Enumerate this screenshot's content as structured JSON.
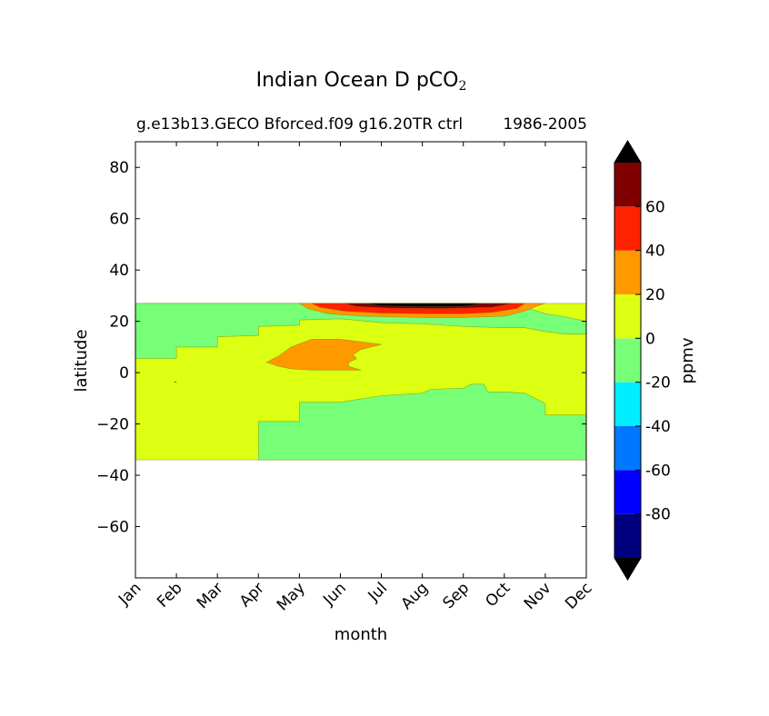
{
  "chart_data": {
    "type": "contourf",
    "title_main": "Indian Ocean D pCO",
    "title_sub": "2",
    "subtitle_left": "g.e13b13.GECO Bforced.f09 g16.20TR ctrl",
    "subtitle_right": "1986-2005",
    "xlabel": "month",
    "ylabel": "latitude",
    "x_categories": [
      "Jan",
      "Feb",
      "Mar",
      "Apr",
      "May",
      "Jun",
      "Jul",
      "Aug",
      "Sep",
      "Oct",
      "Nov",
      "Dec"
    ],
    "ylim": [
      -80,
      90
    ],
    "yticks": [
      80,
      60,
      40,
      20,
      0,
      -20,
      -40,
      -60
    ],
    "ytick_labels": [
      "80",
      "60",
      "40",
      "20",
      "0",
      "−20",
      "−40",
      "−60"
    ],
    "data_lat_range": [
      -34,
      27
    ],
    "colorbar": {
      "label": "ppmv",
      "levels": [
        -100,
        -80,
        -60,
        -40,
        -20,
        0,
        20,
        40,
        60,
        80
      ],
      "tick_labels": [
        "-80",
        "-60",
        "-40",
        "-20",
        "0",
        "20",
        "40",
        "60"
      ],
      "tick_values": [
        -80,
        -60,
        -40,
        -20,
        0,
        20,
        40,
        60
      ],
      "colors": [
        "#00007f",
        "#0000ff",
        "#0077ff",
        "#00eeff",
        "#77ff77",
        "#ddff11",
        "#ff9900",
        "#ff2200",
        "#7f0000"
      ],
      "extend_low_color": "#000000",
      "extend_high_color": "#000000"
    },
    "regions": [
      {
        "name": "baseline-region-0-to-20",
        "band": "0..20",
        "color": "#ddff11",
        "points": [
          [
            0,
            -34
          ],
          [
            11,
            -34
          ],
          [
            11,
            27
          ],
          [
            0,
            27
          ]
        ]
      },
      {
        "name": "negative-region-north",
        "band": "-20..0",
        "color": "#77ff77",
        "points": [
          [
            0,
            27
          ],
          [
            0,
            5.5
          ],
          [
            1,
            5.5
          ],
          [
            1,
            10
          ],
          [
            2,
            10
          ],
          [
            2,
            14
          ],
          [
            3,
            14.5
          ],
          [
            3,
            18
          ],
          [
            4,
            18.5
          ],
          [
            4,
            20.5
          ],
          [
            5,
            21
          ],
          [
            6,
            19.5
          ],
          [
            7,
            19
          ],
          [
            8,
            18
          ],
          [
            9,
            17.5
          ],
          [
            9.5,
            17.5
          ],
          [
            10,
            16
          ],
          [
            10.5,
            15
          ],
          [
            11,
            15
          ],
          [
            11,
            20
          ],
          [
            10.4,
            22
          ],
          [
            10,
            23
          ],
          [
            9.6,
            25
          ],
          [
            9,
            27
          ]
        ]
      },
      {
        "name": "negative-region-south",
        "band": "-20..0",
        "color": "#77ff77",
        "points": [
          [
            3,
            -34
          ],
          [
            3,
            -19
          ],
          [
            4,
            -19
          ],
          [
            4,
            -11.5
          ],
          [
            5,
            -11.5
          ],
          [
            6,
            -9
          ],
          [
            7,
            -8
          ],
          [
            7.2,
            -6.5
          ],
          [
            8,
            -6
          ],
          [
            8.2,
            -4.5
          ],
          [
            8.5,
            -4.5
          ],
          [
            8.6,
            -7.5
          ],
          [
            9,
            -7.5
          ],
          [
            9.5,
            -8
          ],
          [
            10,
            -12
          ],
          [
            10,
            -16.5
          ],
          [
            11,
            -16.5
          ],
          [
            11,
            -34
          ]
        ]
      },
      {
        "name": "positive-region-arabian-sea",
        "band": "20..40",
        "color": "#ff9900",
        "points": [
          [
            3.2,
            4
          ],
          [
            3.5,
            2.5
          ],
          [
            3.8,
            1.5
          ],
          [
            4.3,
            1
          ],
          [
            5.5,
            1
          ],
          [
            5.2,
            2.5
          ],
          [
            5.2,
            4
          ],
          [
            5.4,
            5.5
          ],
          [
            5.3,
            7
          ],
          [
            5.5,
            9
          ],
          [
            6,
            11
          ],
          [
            5.5,
            12
          ],
          [
            5,
            13
          ],
          [
            4.3,
            13
          ],
          [
            3.8,
            10
          ],
          [
            3.5,
            6.5
          ]
        ]
      },
      {
        "name": "positive-region-north-coast",
        "band": "20..40",
        "color": "#ff9900",
        "points": [
          [
            4,
            27
          ],
          [
            4.2,
            25
          ],
          [
            4.7,
            23
          ],
          [
            5.5,
            22
          ],
          [
            7,
            21.5
          ],
          [
            8,
            21.5
          ],
          [
            9,
            22
          ],
          [
            9.5,
            24
          ],
          [
            9.8,
            26
          ],
          [
            10,
            27
          ]
        ]
      },
      {
        "name": "high-region-north-coast",
        "band": "40..60",
        "color": "#ff2200",
        "points": [
          [
            4.3,
            27
          ],
          [
            4.5,
            25.5
          ],
          [
            5.1,
            24
          ],
          [
            6,
            23.2
          ],
          [
            7,
            23
          ],
          [
            8,
            23
          ],
          [
            8.7,
            23.5
          ],
          [
            9.3,
            25
          ],
          [
            9.5,
            27
          ]
        ]
      },
      {
        "name": "very-high-region-north-coast",
        "band": "60..80",
        "color": "#7f0000",
        "points": [
          [
            5.1,
            27
          ],
          [
            5.4,
            25.8
          ],
          [
            6.2,
            25.2
          ],
          [
            7.5,
            25
          ],
          [
            8.7,
            25.5
          ],
          [
            9.2,
            27
          ]
        ]
      },
      {
        "name": "extreme-region-north-coast",
        "band": ">80",
        "color": "#000000",
        "points": [
          [
            5.6,
            27
          ],
          [
            6,
            26
          ],
          [
            7,
            25.7
          ],
          [
            8,
            25.8
          ],
          [
            8.5,
            27
          ]
        ]
      }
    ]
  }
}
